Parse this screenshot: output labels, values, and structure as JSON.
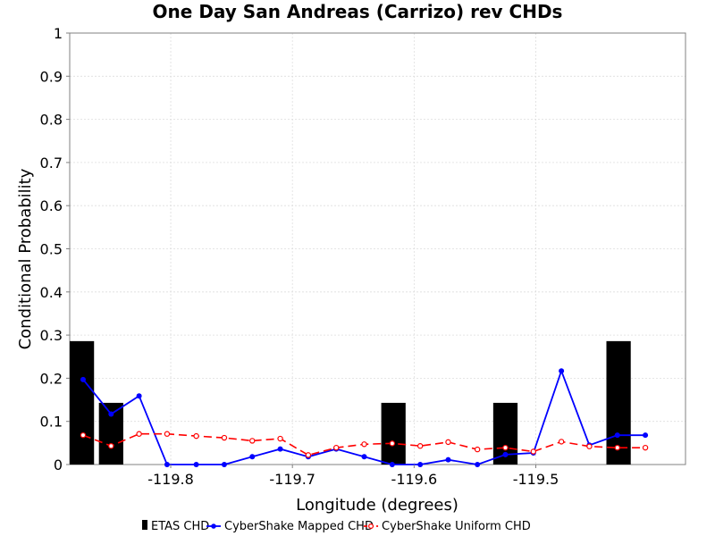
{
  "chart_data": {
    "type": "bar",
    "title": "One Day San Andreas (Carrizo) rev CHDs",
    "xlabel": "Longitude (degrees)",
    "ylabel": "Conditional Probability",
    "xlim": [
      -119.883,
      -119.377
    ],
    "ylim": [
      0,
      1
    ],
    "x_ticks": [
      -119.8,
      -119.7,
      -119.6,
      -119.5
    ],
    "x_tick_labels": [
      "-119.8",
      "-119.7",
      "-119.6",
      "-119.5"
    ],
    "y_ticks": [
      0,
      0.1,
      0.2,
      0.3,
      0.4,
      0.5,
      0.6,
      0.7,
      0.8,
      0.9,
      1
    ],
    "y_tick_labels": [
      "0",
      "0.1",
      "0.2",
      "0.3",
      "0.4",
      "0.5",
      "0.6",
      "0.7",
      "0.8",
      "0.9",
      "1"
    ],
    "grid": true,
    "legend_position": "bottom",
    "legend": [
      {
        "label": "ETAS CHD",
        "color": "#000000",
        "style": "bar"
      },
      {
        "label": "CyberShake Mapped CHD",
        "color": "#0000ff",
        "style": "solid-line-filled-circle"
      },
      {
        "label": "CyberShake Uniform CHD",
        "color": "#ff0000",
        "style": "dashed-line-open-circle"
      }
    ],
    "series": [
      {
        "name": "ETAS CHD",
        "type": "bar",
        "color": "#000000",
        "bars": [
          {
            "x0": -119.883,
            "x1": -119.863,
            "value": 0.286
          },
          {
            "x0": -119.859,
            "x1": -119.839,
            "value": 0.143
          },
          {
            "x0": -119.627,
            "x1": -119.607,
            "value": 0.143
          },
          {
            "x0": -119.535,
            "x1": -119.515,
            "value": 0.143
          },
          {
            "x0": -119.442,
            "x1": -119.422,
            "value": 0.286
          }
        ]
      },
      {
        "name": "CyberShake Mapped CHD",
        "type": "line",
        "color": "#0000ff",
        "x": [
          -119.872,
          -119.849,
          -119.826,
          -119.803,
          -119.779,
          -119.756,
          -119.733,
          -119.71,
          -119.687,
          -119.664,
          -119.641,
          -119.618,
          -119.595,
          -119.572,
          -119.548,
          -119.525,
          -119.502,
          -119.479,
          -119.456,
          -119.433,
          -119.41
        ],
        "y": [
          0.197,
          0.117,
          0.159,
          0.0,
          0.0,
          0.0,
          0.018,
          0.036,
          0.018,
          0.036,
          0.018,
          0.0,
          0.0,
          0.011,
          0.0,
          0.023,
          0.027,
          0.217,
          0.045,
          0.068,
          0.068
        ]
      },
      {
        "name": "CyberShake Uniform CHD",
        "type": "line",
        "color": "#ff0000",
        "x": [
          -119.872,
          -119.849,
          -119.826,
          -119.803,
          -119.779,
          -119.756,
          -119.733,
          -119.71,
          -119.687,
          -119.664,
          -119.641,
          -119.618,
          -119.595,
          -119.572,
          -119.548,
          -119.525,
          -119.502,
          -119.479,
          -119.456,
          -119.433,
          -119.41
        ],
        "y": [
          0.068,
          0.043,
          0.071,
          0.071,
          0.066,
          0.062,
          0.055,
          0.06,
          0.022,
          0.039,
          0.047,
          0.049,
          0.043,
          0.052,
          0.035,
          0.039,
          0.03,
          0.053,
          0.042,
          0.039,
          0.039
        ]
      }
    ]
  }
}
